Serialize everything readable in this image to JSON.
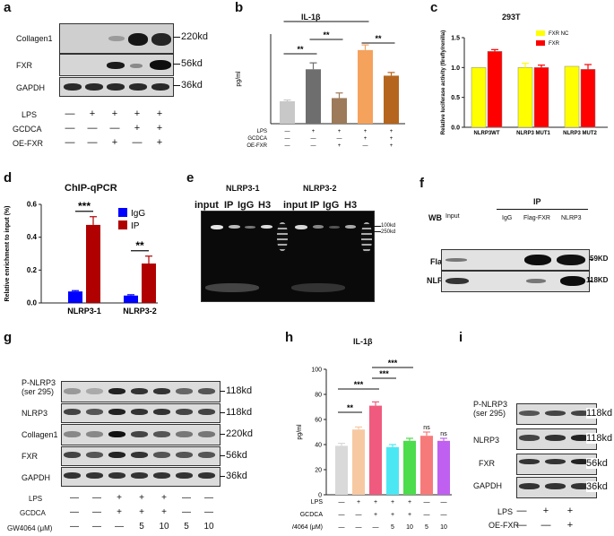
{
  "panel_letters": [
    "a",
    "b",
    "c",
    "d",
    "e",
    "f",
    "g",
    "h",
    "i"
  ],
  "a": {
    "rows": [
      "Collagen1",
      "FXR",
      "GAPDH"
    ],
    "sizes": [
      "220kd",
      "56kd",
      "36kd"
    ],
    "conditions": {
      "names": [
        "LPS",
        "GCDCA",
        "OE-FXR"
      ],
      "signs": [
        [
          "—",
          "+",
          "+",
          "+",
          "+"
        ],
        [
          "—",
          "—",
          "—",
          "+",
          "+"
        ],
        [
          "—",
          "—",
          "+",
          "—",
          "+"
        ]
      ]
    }
  },
  "b": {
    "chart_data": {
      "type": "bar",
      "title": "IL-1β",
      "ylabel": "pg/ml",
      "ylim": [
        0,
        140
      ],
      "categories": [
        "1",
        "2",
        "3",
        "4",
        "5"
      ],
      "values": [
        35,
        85,
        40,
        115,
        75
      ],
      "errors": [
        2,
        10,
        8,
        8,
        5
      ],
      "colors": [
        "#c8c8c8",
        "#6e6e6e",
        "#9c7a5a",
        "#f5a25d",
        "#b5651d"
      ],
      "significance": [
        {
          "from": 0,
          "to": 3,
          "label": "****"
        },
        {
          "from": 0,
          "to": 1,
          "label": "**"
        },
        {
          "from": 1,
          "to": 2,
          "label": "**"
        },
        {
          "from": 3,
          "to": 4,
          "label": "**"
        }
      ],
      "conditions": {
        "names": [
          "LPS",
          "GCDCA",
          "OE-FXR"
        ],
        "signs": [
          [
            "—",
            "+",
            "+",
            "+",
            "+"
          ],
          [
            "—",
            "—",
            "—",
            "+",
            "+"
          ],
          [
            "—",
            "—",
            "+",
            "—",
            "+"
          ]
        ]
      }
    }
  },
  "c": {
    "chart_data": {
      "type": "bar",
      "title": "293T",
      "ylabel": "Relative luciferase activity (firefly/renilla)",
      "ylim": [
        0,
        1.5
      ],
      "yticks": [
        "0.0",
        "0.5",
        "1.0",
        "1.5"
      ],
      "categories": [
        "NLRP3WT",
        "NLRP3 MUT1",
        "NLRP3 MUT2"
      ],
      "series": [
        {
          "name": "FXR NC",
          "color": "#ffff00",
          "values": [
            1.0,
            1.0,
            1.02
          ],
          "errors": [
            0,
            0.07,
            0
          ]
        },
        {
          "name": "FXR",
          "color": "#ff0000",
          "values": [
            1.27,
            1.0,
            0.97
          ],
          "errors": [
            0.03,
            0.04,
            0.08
          ]
        }
      ]
    }
  },
  "d": {
    "chart_data": {
      "type": "bar",
      "title": "ChIP-qPCR",
      "ylabel": "Relative enrichment to input (%)",
      "ylim": [
        0,
        0.6
      ],
      "yticks": [
        "0.0",
        "0.2",
        "0.4",
        "0.6"
      ],
      "categories": [
        "NLRP3-1",
        "NLRP3-2"
      ],
      "series": [
        {
          "name": "IgG",
          "color": "#0000ff",
          "values": [
            0.07,
            0.045
          ],
          "errors": [
            0.005,
            0.005
          ]
        },
        {
          "name": "IP",
          "color": "#b00000",
          "values": [
            0.475,
            0.24
          ],
          "errors": [
            0.05,
            0.045
          ]
        }
      ],
      "significance": [
        "***",
        "**"
      ]
    }
  },
  "e": {
    "headers": [
      "NLRP3-1",
      "NLRP3-2"
    ],
    "lanes": [
      "input",
      "IP",
      "IgG",
      "H3",
      "input",
      "IP",
      "IgG",
      "H3"
    ],
    "ladder": [
      "100kd",
      "250kd"
    ]
  },
  "f": {
    "header": "IP",
    "wb": "WB",
    "lanes": [
      "Input",
      "IgG",
      "Flag-FXR",
      "NLRP3"
    ],
    "rows": [
      "Flag",
      "NLRP3"
    ],
    "sizes": [
      "59KD",
      "118KD"
    ]
  },
  "g": {
    "rows": [
      "P-NLRP3 (ser 295)",
      "NLRP3",
      "Collagen1",
      "FXR",
      "GAPDH"
    ],
    "sizes": [
      "118kd",
      "118kd",
      "220kd",
      "56kd",
      "36kd"
    ],
    "conditions": {
      "names": [
        "LPS",
        "GCDCA",
        "GW4064 (μM)"
      ],
      "signs": [
        [
          "—",
          "—",
          "+",
          "+",
          "+",
          "—",
          "—"
        ],
        [
          "—",
          "—",
          "+",
          "+",
          "+",
          "—",
          "—"
        ],
        [
          "—",
          "—",
          "—",
          "5",
          "10",
          "5",
          "10"
        ]
      ]
    }
  },
  "h": {
    "chart_data": {
      "type": "bar",
      "title": "IL-1β",
      "ylabel": "pg/ml",
      "ylim": [
        0,
        100
      ],
      "yticks": [
        "0",
        "20",
        "40",
        "60",
        "80",
        "100"
      ],
      "categories": [
        "1",
        "2",
        "3",
        "4",
        "5",
        "6",
        "7"
      ],
      "values": [
        39,
        52,
        71,
        38,
        43,
        47,
        43
      ],
      "errors": [
        2,
        2,
        3,
        2,
        2,
        3,
        2
      ],
      "colors": [
        "#d9d9d9",
        "#f7c9a3",
        "#f05a7e",
        "#4be8f4",
        "#4cdc4c",
        "#f77a7a",
        "#c060f0"
      ],
      "significance": [
        {
          "from": 0,
          "to": 1,
          "label": "**"
        },
        {
          "from": 0,
          "to": 2,
          "label": "***"
        },
        {
          "from": 2,
          "to": 3,
          "label": "***"
        },
        {
          "from": 2,
          "to": 4,
          "label": "***"
        }
      ],
      "ns": [
        {
          "bar": 5,
          "label": "ns"
        },
        {
          "bar": 6,
          "label": "ns"
        }
      ],
      "conditions": {
        "names": [
          "LPS",
          "GCDCA",
          "GW4064 (μM)"
        ],
        "signs": [
          [
            "—",
            "+",
            "+",
            "+",
            "+",
            "—",
            "—"
          ],
          [
            "—",
            "—",
            "+",
            "+",
            "+",
            "—",
            "—"
          ],
          [
            "—",
            "—",
            "—",
            "5",
            "10",
            "5",
            "10"
          ]
        ]
      }
    }
  },
  "i": {
    "rows": [
      "P-NLRP3 (ser 295)",
      "NLRP3",
      "FXR",
      "GAPDH"
    ],
    "sizes": [
      "118kd",
      "118kd",
      "56kd",
      "36kd"
    ],
    "conditions": {
      "names": [
        "LPS",
        "OE-FXR"
      ],
      "signs": [
        [
          "—",
          "+",
          "+"
        ],
        [
          "—",
          "—",
          "+"
        ]
      ]
    }
  }
}
